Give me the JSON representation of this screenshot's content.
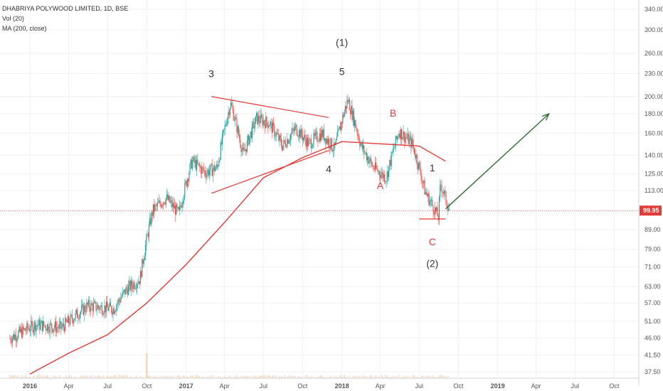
{
  "legend": {
    "symbol_line": "DHABRIYA POLYWOOD LIMITED, 1D, BSE",
    "volume_line": "Vol (20)",
    "ma_line": "MA (200, close)"
  },
  "price_badge": "99.95",
  "colors": {
    "up": "#26a69a",
    "down": "#ef5350",
    "ma": "#e53935",
    "annotation": "#e53935",
    "arrow": "#2e6b2e",
    "grid": "#eef0f3",
    "badge": "#e53935"
  },
  "chart_data": {
    "type": "candlestick",
    "log_scale": true,
    "x_tick_labels": [
      "2016",
      "Apr",
      "Jul",
      "Oct",
      "2017",
      "Apr",
      "Jul",
      "Oct",
      "2018",
      "Apr",
      "Jul",
      "Oct",
      "2019",
      "Apr",
      "Jul",
      "Oct"
    ],
    "y_tick_labels": [
      "340.00",
      "300.00",
      "260.00",
      "230.00",
      "200.00",
      "180.00",
      "160.00",
      "140.00",
      "125.00",
      "113.00",
      "99.95",
      "89.00",
      "79.00",
      "71.00",
      "63.00",
      "57.00",
      "51.00",
      "46.00",
      "41.50",
      "37.50"
    ],
    "last_price": 99.95,
    "price_path": [
      {
        "date": "2015-11",
        "close": 46
      },
      {
        "date": "2016-01",
        "close": 50
      },
      {
        "date": "2016-03",
        "close": 49
      },
      {
        "date": "2016-05",
        "close": 56
      },
      {
        "date": "2016-07",
        "close": 55
      },
      {
        "date": "2016-08",
        "close": 62
      },
      {
        "date": "2016-09",
        "close": 66
      },
      {
        "date": "2016-10",
        "close": 100
      },
      {
        "date": "2016-11",
        "close": 108
      },
      {
        "date": "2016-12",
        "close": 98
      },
      {
        "date": "2017-01",
        "close": 135
      },
      {
        "date": "2017-02",
        "close": 126
      },
      {
        "date": "2017-03",
        "close": 130
      },
      {
        "date": "2017-04",
        "close": 192
      },
      {
        "date": "2017-05",
        "close": 140
      },
      {
        "date": "2017-06",
        "close": 175
      },
      {
        "date": "2017-07",
        "close": 170
      },
      {
        "date": "2017-08",
        "close": 148
      },
      {
        "date": "2017-09",
        "close": 165
      },
      {
        "date": "2017-10",
        "close": 150
      },
      {
        "date": "2017-11",
        "close": 160
      },
      {
        "date": "2017-12",
        "close": 145
      },
      {
        "date": "2018-01",
        "close": 196
      },
      {
        "date": "2018-02",
        "close": 148
      },
      {
        "date": "2018-03",
        "close": 130
      },
      {
        "date": "2018-04",
        "close": 122
      },
      {
        "date": "2018-05",
        "close": 162
      },
      {
        "date": "2018-06",
        "close": 150
      },
      {
        "date": "2018-07",
        "close": 112
      },
      {
        "date": "2018-08",
        "close": 96
      },
      {
        "date": "2018-08-20",
        "close": 118
      },
      {
        "date": "2018-09-10",
        "close": 99.95
      }
    ],
    "ma200": [
      {
        "date": "2016-01",
        "value": 37
      },
      {
        "date": "2016-04",
        "value": 42
      },
      {
        "date": "2016-07",
        "value": 47
      },
      {
        "date": "2016-10",
        "value": 57
      },
      {
        "date": "2017-01",
        "value": 72
      },
      {
        "date": "2017-04",
        "value": 93
      },
      {
        "date": "2017-07",
        "value": 122
      },
      {
        "date": "2017-10",
        "value": 138
      },
      {
        "date": "2018-01",
        "value": 152
      },
      {
        "date": "2018-04",
        "value": 150
      },
      {
        "date": "2018-07",
        "value": 148
      },
      {
        "date": "2018-09",
        "value": 135
      }
    ],
    "annotations": {
      "labels": [
        {
          "text": "3",
          "date": "2017-03",
          "price": 225,
          "color": "#333"
        },
        {
          "text": "5",
          "date": "2018-01",
          "price": 228,
          "color": "#333"
        },
        {
          "text": "(1)",
          "date": "2018-01",
          "price": 272,
          "color": "#333"
        },
        {
          "text": "4",
          "date": "2017-12",
          "price": 126,
          "color": "#333"
        },
        {
          "text": "B",
          "date": "2018-05",
          "price": 177,
          "color": "#e53935"
        },
        {
          "text": "A",
          "date": "2018-04",
          "price": 114,
          "color": "#e53935"
        },
        {
          "text": "1",
          "date": "2018-08",
          "price": 127,
          "color": "#333"
        },
        {
          "text": "C",
          "date": "2018-08",
          "price": 81,
          "color": "#e53935"
        },
        {
          "text": "(2)",
          "date": "2018-08",
          "price": 71,
          "color": "#333"
        }
      ],
      "trendlines": [
        {
          "from": {
            "date": "2017-03",
            "price": 200
          },
          "to": {
            "date": "2017-12",
            "price": 176
          },
          "color": "#e53935"
        },
        {
          "from": {
            "date": "2017-03",
            "price": 111
          },
          "to": {
            "date": "2017-12",
            "price": 144
          },
          "color": "#e53935"
        },
        {
          "from": {
            "date": "2018-07",
            "price": 95
          },
          "to": {
            "date": "2018-09",
            "price": 95
          },
          "color": "#e53935"
        }
      ],
      "arrow": {
        "from": {
          "date": "2018-09",
          "price": 101
        },
        "to": {
          "date": "2019-05",
          "price": 180
        },
        "color": "#2e6b2e"
      }
    }
  }
}
